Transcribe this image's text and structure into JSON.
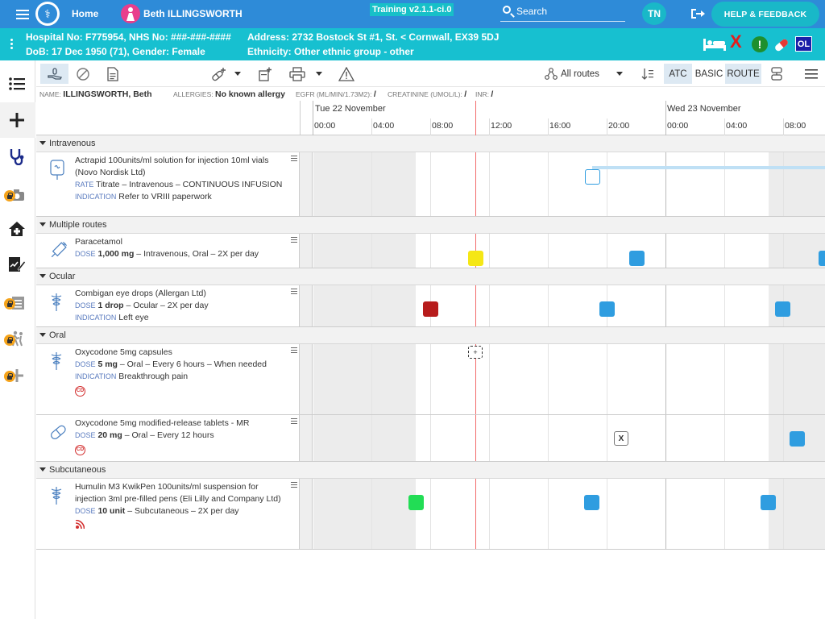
{
  "topbar": {
    "home": "Home",
    "patient_name": "Beth ILLINGSWORTH",
    "training": "Training v2.1.1-ci.0",
    "search_label": "Search",
    "user_initials": "TN",
    "help": "HELP & FEEDBACK"
  },
  "banner": {
    "line1_left": "Hospital No: F775954, NHS No: ###-###-####",
    "line2_left": "DoB: 17 Dec 1950 (71), Gender: Female",
    "line1_right": "Address: 2732 Bostock St #1, St. < Cornwall, EX39 5DJ",
    "line2_right": "Ethnicity: Other ethnic group - other",
    "ol_badge": "OL",
    "excl": "!",
    "redx": "X"
  },
  "toolbar": {
    "routes": "All routes",
    "atc": "ATC",
    "basic": "BASIC",
    "route": "ROUTE"
  },
  "infostrip": {
    "name_label": "NAME:",
    "name": "ILLINGSWORTH, Beth",
    "allergies_label": "ALLERGIES:",
    "allergies": "No known allergy",
    "egfr_label": "EGFR (ML/MIN/1.73M2):",
    "egfr": "/",
    "creat_label": "CREATININE (UMOL/L):",
    "creat": "/",
    "inr_label": "INR:",
    "inr": "/"
  },
  "timeline": {
    "day1": "Tue 22 November",
    "day2": "Wed 23 November",
    "hours": [
      "00:00",
      "04:00",
      "08:00",
      "12:00",
      "16:00",
      "20:00",
      "00:00",
      "04:00",
      "08:00"
    ]
  },
  "groups": [
    {
      "name": "Intravenous",
      "rows": [
        {
          "title": "Actrapid 100units/ml solution for injection 10ml vials (Novo Nordisk Ltd)",
          "kw1": "RATE",
          "detail1": "Titrate – Intravenous – CONTINUOUS INFUSION",
          "kw2": "INDICATION",
          "detail2": "Refer to VRIII paperwork"
        }
      ]
    },
    {
      "name": "Multiple routes",
      "rows": [
        {
          "title": "Paracetamol",
          "kw1": "DOSE",
          "dose": "1,000 mg",
          "detail1": " – Intravenous, Oral – 2X per day"
        }
      ]
    },
    {
      "name": "Ocular",
      "rows": [
        {
          "title": "Combigan eye drops (Allergan Ltd)",
          "kw1": "DOSE",
          "dose": "1 drop",
          "detail1": " – Ocular – 2X per day",
          "kw2": "INDICATION",
          "detail2": "Left eye"
        }
      ]
    },
    {
      "name": "Oral",
      "rows": [
        {
          "title": "Oxycodone 5mg capsules",
          "kw1": "DOSE",
          "dose": "5 mg",
          "detail1": " – Oral – Every 6 hours – When needed",
          "kw2": "INDICATION",
          "detail2": "Breakthrough pain",
          "cd": "CD"
        },
        {
          "title": "Oxycodone 5mg modified-release tablets - MR",
          "kw1": "DOSE",
          "dose": "20 mg",
          "detail1": " – Oral – Every 12 hours",
          "cd": "CD",
          "x_marker": "X"
        }
      ]
    },
    {
      "name": "Subcutaneous",
      "rows": [
        {
          "title": "Humulin M3 KwikPen 100units/ml suspension for injection 3ml pre-filled pens (Eli Lilly and Company Ltd)",
          "kw1": "DOSE",
          "dose": "10 unit",
          "detail1": " – Subcutaneous – 2X per day"
        }
      ]
    }
  ],
  "colors": {
    "accent": "#2e8bd8",
    "banner": "#17c0d0",
    "given": "#2f9de0",
    "due": "#f5e716",
    "missed": "#b71c1c",
    "done": "#22dd55"
  }
}
